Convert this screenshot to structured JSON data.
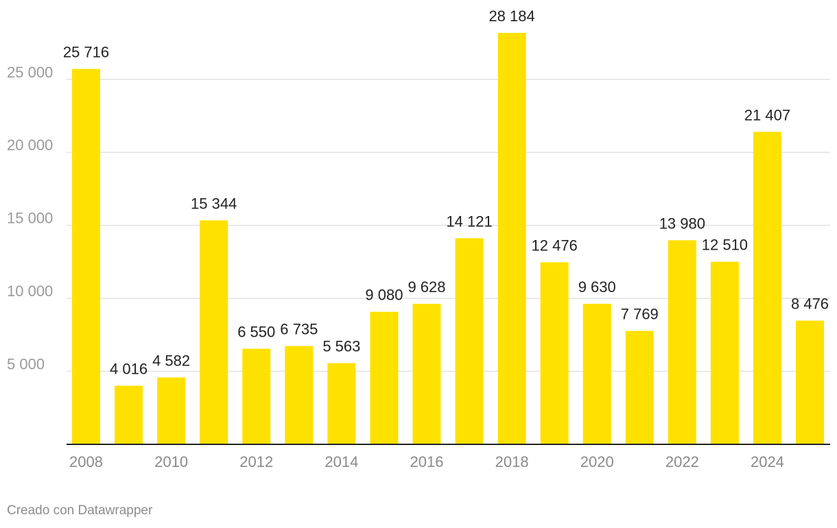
{
  "chart_data": {
    "type": "bar",
    "title": "",
    "xlabel": "",
    "ylabel": "",
    "categories": [
      "2008",
      "2009",
      "2010",
      "2011",
      "2012",
      "2013",
      "2014",
      "2015",
      "2016",
      "2017",
      "2018",
      "2019",
      "2020",
      "2021",
      "2022",
      "2023",
      "2024",
      "2025"
    ],
    "values": [
      25716,
      4016,
      4582,
      15344,
      6550,
      6735,
      5563,
      9080,
      9628,
      14121,
      28184,
      12476,
      9630,
      7769,
      13980,
      12510,
      21407,
      8476
    ],
    "value_labels": [
      "25 716",
      "4 016",
      "4 582",
      "15 344",
      "6 550",
      "6 735",
      "5 563",
      "9 080",
      "9 628",
      "14 121",
      "28 184",
      "12 476",
      "9 630",
      "7 769",
      "13 980",
      "12 510",
      "21 407",
      "8 476"
    ],
    "x_tick_labels": [
      "2008",
      "2010",
      "2012",
      "2014",
      "2016",
      "2018",
      "2020",
      "2022",
      "2024"
    ],
    "y_ticks": [
      5000,
      10000,
      15000,
      20000,
      25000
    ],
    "y_tick_labels": [
      "5 000",
      "10 000",
      "15 000",
      "20 000",
      "25 000"
    ],
    "ylim": [
      0,
      28184
    ],
    "grid": true,
    "bar_color": "#ffe100"
  },
  "footer": {
    "credit": "Creado con Datawrapper"
  }
}
